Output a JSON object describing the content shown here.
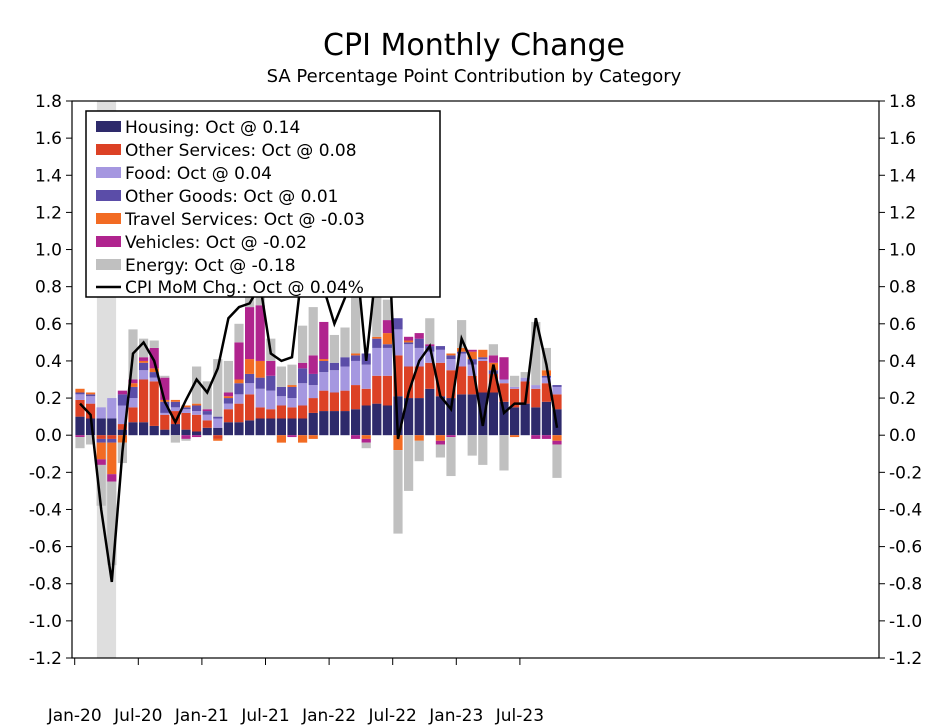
{
  "chart_data": {
    "type": "bar",
    "stacked": true,
    "title": "CPI Monthly Change",
    "subtitle": "SA Percentage Point Contribution by Category",
    "ylim": [
      -1.2,
      1.8
    ],
    "y_ticks": [
      "1.8",
      "1.6",
      "1.4",
      "1.2",
      "1.0",
      "0.8",
      "0.6",
      "0.4",
      "0.2",
      "0.0",
      "-0.2",
      "-0.4",
      "-0.6",
      "-0.8",
      "-1.0",
      "-1.2"
    ],
    "x_tick_labels": [
      "Jan-20",
      "Jul-20",
      "Jan-21",
      "Jul-21",
      "Jan-22",
      "Jul-22",
      "Jan-23",
      "Jul-23"
    ],
    "months": [
      "Jan-20",
      "Feb-20",
      "Mar-20",
      "Apr-20",
      "May-20",
      "Jun-20",
      "Jul-20",
      "Aug-20",
      "Sep-20",
      "Oct-20",
      "Nov-20",
      "Dec-20",
      "Jan-21",
      "Feb-21",
      "Mar-21",
      "Apr-21",
      "May-21",
      "Jun-21",
      "Jul-21",
      "Aug-21",
      "Sep-21",
      "Oct-21",
      "Nov-21",
      "Dec-21",
      "Jan-22",
      "Feb-22",
      "Mar-22",
      "Apr-22",
      "May-22",
      "Jun-22",
      "Jul-22",
      "Aug-22",
      "Sep-22",
      "Oct-22",
      "Nov-22",
      "Dec-22",
      "Jan-23",
      "Feb-23",
      "Mar-23",
      "Apr-23",
      "May-23",
      "Jun-23",
      "Jul-23",
      "Aug-23",
      "Sep-23",
      "Oct-23"
    ],
    "recession_shading": {
      "from": "Mar-20",
      "to": "Apr-20",
      "color": "#dedede"
    },
    "legend_position": "top-left",
    "series": [
      {
        "name": "Housing",
        "legend": "Housing: Oct @ 0.14",
        "color": "#2e2a6b",
        "values": [
          0.1,
          0.09,
          0.09,
          0.09,
          0.03,
          0.07,
          0.07,
          0.05,
          0.03,
          0.06,
          0.03,
          0.02,
          0.04,
          0.04,
          0.07,
          0.07,
          0.08,
          0.09,
          0.09,
          0.09,
          0.09,
          0.09,
          0.12,
          0.13,
          0.13,
          0.13,
          0.14,
          0.16,
          0.17,
          0.16,
          0.21,
          0.2,
          0.2,
          0.25,
          0.21,
          0.2,
          0.22,
          0.22,
          0.23,
          0.23,
          0.18,
          0.15,
          0.17,
          0.15,
          0.18,
          0.14
        ]
      },
      {
        "name": "Other Services",
        "legend": "Other Services: Oct @ 0.08",
        "color": "#dc4125",
        "values": [
          0.09,
          0.08,
          -0.02,
          -0.02,
          0.03,
          0.08,
          0.23,
          0.24,
          0.08,
          0.07,
          0.09,
          0.09,
          0.04,
          -0.02,
          0.07,
          0.1,
          0.14,
          0.06,
          0.05,
          0.07,
          0.06,
          0.07,
          0.08,
          0.11,
          0.1,
          0.11,
          0.13,
          0.09,
          0.15,
          0.16,
          0.22,
          0.17,
          0.17,
          0.14,
          0.18,
          0.15,
          0.15,
          0.1,
          0.17,
          0.1,
          0.1,
          0.1,
          0.12,
          0.1,
          0.1,
          0.08
        ]
      },
      {
        "name": "Food",
        "legend": "Food: Oct @ 0.04",
        "color": "#a597e0",
        "values": [
          0.03,
          0.04,
          0.06,
          0.11,
          0.1,
          0.05,
          0.05,
          0.02,
          0.01,
          0.02,
          0.02,
          0.02,
          0.03,
          0.05,
          0.03,
          0.05,
          0.06,
          0.1,
          0.1,
          0.05,
          0.05,
          0.12,
          0.07,
          0.1,
          0.12,
          0.13,
          0.13,
          0.13,
          0.15,
          0.15,
          0.14,
          0.12,
          0.1,
          0.06,
          0.07,
          0.06,
          0.07,
          0.06,
          0.01,
          0.0,
          0.02,
          0.01,
          0.02,
          0.02,
          0.03,
          0.04
        ]
      },
      {
        "name": "Other Goods",
        "legend": "Other Goods: Oct @ 0.01",
        "color": "#5b4da8",
        "values": [
          0.01,
          0.01,
          -0.02,
          -0.02,
          0.06,
          0.06,
          0.04,
          0.03,
          0.06,
          0.03,
          0.01,
          0.03,
          0.02,
          0.01,
          0.03,
          0.06,
          0.05,
          0.06,
          0.08,
          0.05,
          0.06,
          0.08,
          0.06,
          0.06,
          0.04,
          0.05,
          0.03,
          0.06,
          0.05,
          0.02,
          0.06,
          0.01,
          0.05,
          0.03,
          0.02,
          0.02,
          0.01,
          0.03,
          0.01,
          0.02,
          0.0,
          0.0,
          0.0,
          0.0,
          0.01,
          0.01
        ]
      },
      {
        "name": "Travel Services",
        "legend": "Travel Services: Oct @ -0.03",
        "color": "#f26b23",
        "values": [
          0.02,
          0.01,
          -0.09,
          -0.17,
          -0.04,
          0.02,
          0.01,
          0.02,
          0.01,
          0.01,
          0.01,
          0.01,
          0.0,
          -0.01,
          0.01,
          0.02,
          0.08,
          0.09,
          0.0,
          -0.04,
          0.01,
          -0.04,
          -0.02,
          0.01,
          0.0,
          0.0,
          0.01,
          -0.02,
          0.01,
          0.06,
          -0.08,
          0.01,
          -0.03,
          0.0,
          -0.03,
          0.01,
          0.02,
          0.04,
          0.04,
          0.04,
          0.0,
          -0.01,
          0.0,
          0.0,
          0.03,
          -0.03
        ]
      },
      {
        "name": "Vehicles",
        "legend": "Vehicles: Oct @ -0.02",
        "color": "#b0248e",
        "values": [
          -0.01,
          0.0,
          -0.03,
          -0.04,
          0.02,
          0.02,
          0.02,
          0.11,
          0.12,
          0.0,
          -0.02,
          -0.01,
          0.01,
          0.0,
          0.02,
          0.2,
          0.28,
          0.3,
          0.08,
          0.0,
          -0.01,
          0.03,
          0.1,
          0.2,
          0.0,
          0.0,
          -0.02,
          -0.02,
          0.0,
          0.07,
          0.0,
          0.02,
          0.03,
          0.01,
          -0.02,
          -0.01,
          0.0,
          0.01,
          0.0,
          0.04,
          0.12,
          0.0,
          0.0,
          -0.02,
          -0.02,
          -0.02
        ]
      },
      {
        "name": "Energy",
        "legend": "Energy: Oct @ -0.18",
        "color": "#c0c0c0",
        "values": [
          -0.06,
          -0.05,
          -0.22,
          -0.45,
          -0.11,
          0.27,
          0.1,
          0.04,
          0.01,
          -0.04,
          -0.01,
          0.2,
          0.15,
          0.31,
          0.17,
          0.1,
          0.07,
          0.15,
          0.12,
          0.11,
          0.11,
          0.2,
          0.26,
          0.0,
          0.15,
          0.16,
          0.55,
          -0.03,
          0.31,
          0.11,
          -0.45,
          -0.3,
          -0.11,
          0.14,
          -0.07,
          -0.21,
          0.15,
          -0.11,
          -0.16,
          0.06,
          -0.19,
          0.06,
          0.03,
          0.34,
          0.12,
          -0.18
        ]
      },
      {
        "name": "CPI MoM Chg.",
        "legend": "CPI MoM Chg.: Oct @ 0.04%",
        "color": "#000000",
        "type": "line",
        "values": [
          0.17,
          0.11,
          -0.4,
          -0.79,
          -0.09,
          0.44,
          0.5,
          0.4,
          0.18,
          0.07,
          0.19,
          0.3,
          0.23,
          0.36,
          0.63,
          0.69,
          0.71,
          0.81,
          0.44,
          0.4,
          0.42,
          0.91,
          0.78,
          0.79,
          0.6,
          0.74,
          1.0,
          0.4,
          0.93,
          1.19,
          -0.02,
          0.23,
          0.4,
          0.48,
          0.21,
          0.14,
          0.52,
          0.39,
          0.05,
          0.38,
          0.12,
          0.17,
          0.17,
          0.63,
          0.38,
          0.04
        ]
      }
    ]
  }
}
